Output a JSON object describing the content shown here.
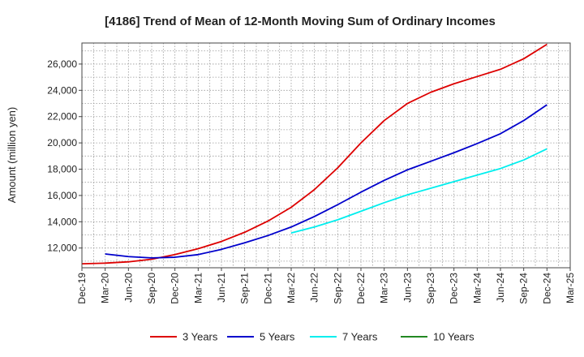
{
  "chart_data": {
    "type": "line",
    "title": "[4186]  Trend of Mean of 12-Month Moving Sum of Ordinary Incomes",
    "xlabel": "",
    "ylabel": "Amount (million yen)",
    "ylim": [
      10500,
      27600
    ],
    "yticks": [
      12000,
      14000,
      16000,
      18000,
      20000,
      22000,
      24000,
      26000
    ],
    "ytick_labels": [
      "12,000",
      "14,000",
      "16,000",
      "18,000",
      "20,000",
      "22,000",
      "24,000",
      "26,000"
    ],
    "categories": [
      "Dec-19",
      "Mar-20",
      "Jun-20",
      "Sep-20",
      "Dec-20",
      "Mar-21",
      "Jun-21",
      "Sep-21",
      "Dec-21",
      "Mar-22",
      "Jun-22",
      "Sep-22",
      "Dec-22",
      "Mar-23",
      "Jun-23",
      "Sep-23",
      "Dec-23",
      "Mar-24",
      "Jun-24",
      "Sep-24",
      "Dec-24",
      "Mar-25"
    ],
    "series": [
      {
        "name": "3 Years",
        "color": "#dd0000",
        "values": [
          10800,
          10850,
          10950,
          11150,
          11500,
          11950,
          12500,
          13200,
          14050,
          15100,
          16450,
          18100,
          20000,
          21700,
          23000,
          23850,
          24500,
          25050,
          25600,
          26400,
          27500,
          null
        ]
      },
      {
        "name": "5 Years",
        "color": "#0000cc",
        "values": [
          null,
          11550,
          11350,
          11250,
          11300,
          11500,
          11900,
          12400,
          12950,
          13600,
          14400,
          15300,
          16250,
          17150,
          17950,
          18600,
          19250,
          19950,
          20700,
          21700,
          22900,
          null
        ]
      },
      {
        "name": "7 Years",
        "color": "#00eeee",
        "values": [
          null,
          null,
          null,
          null,
          null,
          null,
          null,
          null,
          null,
          13150,
          13600,
          14150,
          14800,
          15450,
          16050,
          16550,
          17050,
          17550,
          18050,
          18700,
          19550,
          null
        ]
      },
      {
        "name": "10 Years",
        "color": "#228822",
        "values": [
          null,
          null,
          null,
          null,
          null,
          null,
          null,
          null,
          null,
          null,
          null,
          null,
          null,
          null,
          null,
          null,
          null,
          null,
          null,
          null,
          null,
          null
        ]
      }
    ],
    "grid": true,
    "legend": "bottom"
  }
}
